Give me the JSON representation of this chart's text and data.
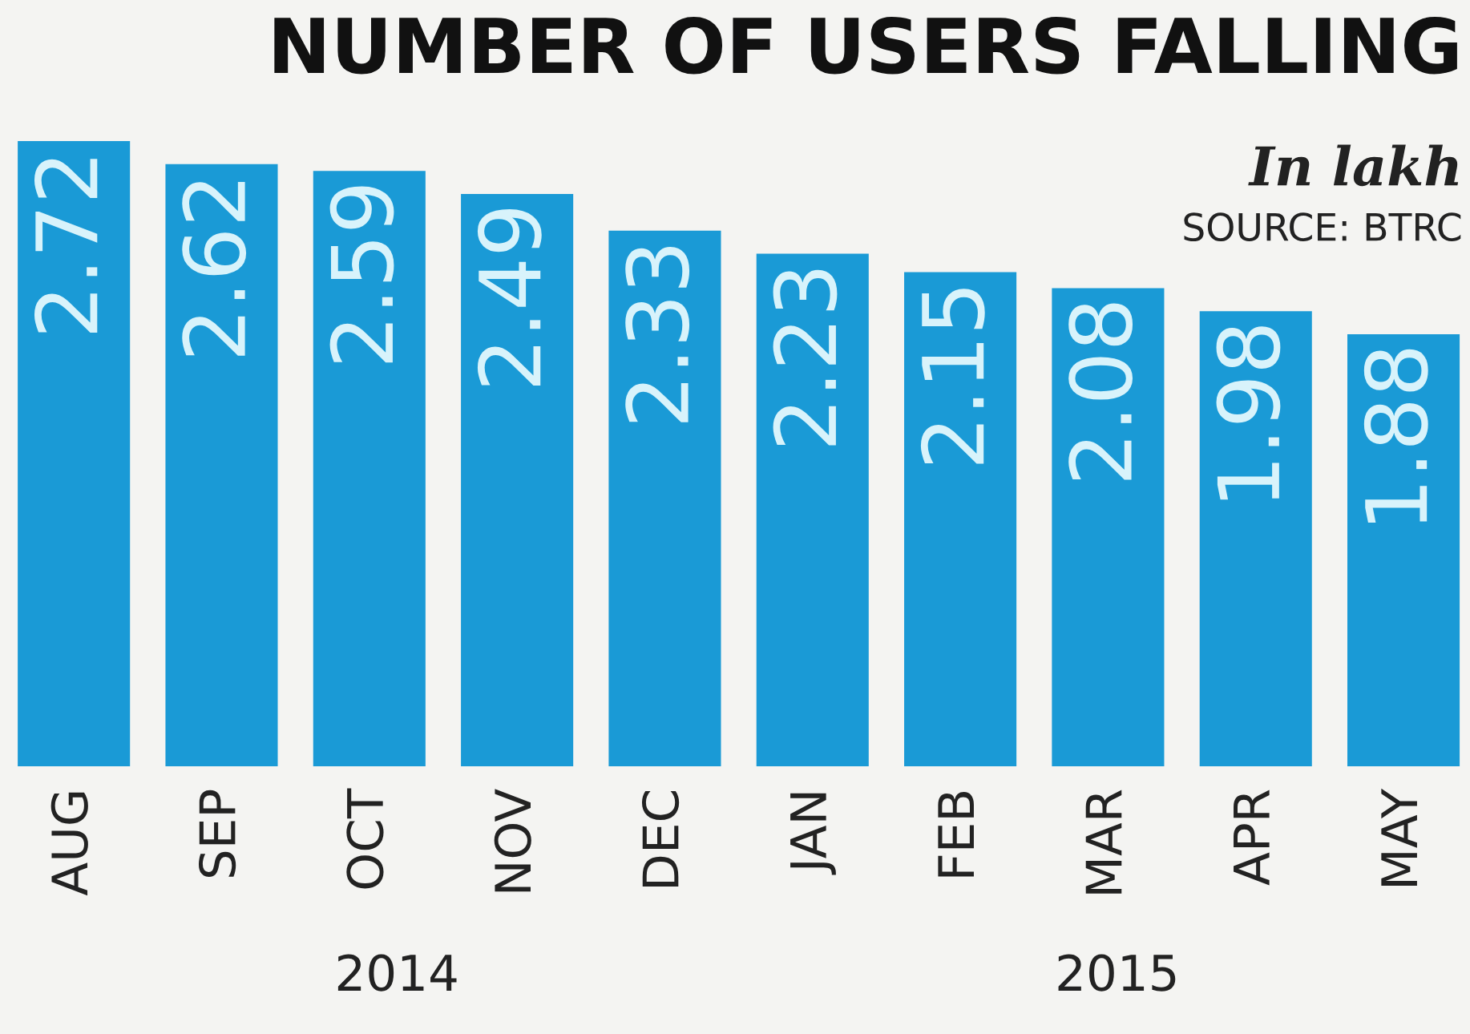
{
  "chart_data": {
    "type": "bar",
    "title": "NUMBER OF USERS FALLING",
    "categories": [
      "AUG",
      "SEP",
      "OCT",
      "NOV",
      "DEC",
      "JAN",
      "FEB",
      "MAR",
      "APR",
      "MAY"
    ],
    "values": [
      2.72,
      2.62,
      2.59,
      2.49,
      2.33,
      2.23,
      2.15,
      2.08,
      1.98,
      1.88
    ],
    "color": "#1a9ad6",
    "data_labels": true,
    "grid": false,
    "legend": false,
    "tick_labels": "x",
    "annotations": [
      "In lakh",
      "SOURCE: BTRC",
      "2014",
      "2015"
    ]
  }
}
